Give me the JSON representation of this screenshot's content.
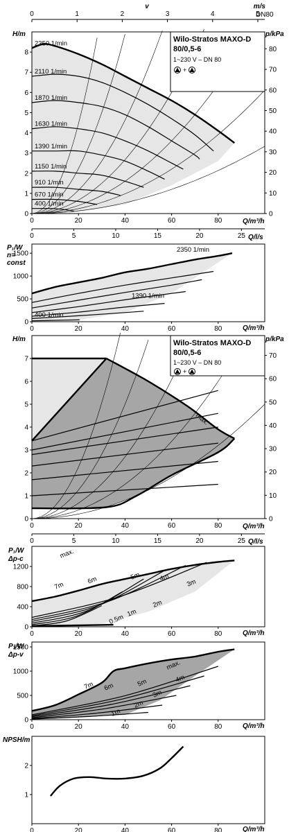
{
  "meta": {
    "product_title": "Wilo-Stratos MAXO-D",
    "product_model": "80/0,5-6",
    "product_subtitle": "1~230 V – DN 80",
    "product_title_3": "Wilo-Stratos MAXO-D",
    "product_model_3": "80/0,5-6",
    "product_subtitle_3": "1~230 V – DN 80"
  },
  "top_axis": {
    "velocity_symbol": "v",
    "velocity_unit": "m/s",
    "velocity_ticks": [
      "0",
      "1",
      "2",
      "3",
      "4",
      "5"
    ],
    "dn_label": "DN80"
  },
  "chart_data": [
    {
      "type": "line",
      "id": "hq",
      "ylabel": "H/m",
      "y2label": "p/kPa",
      "xlabel": "Q/m³/h",
      "x2label": "Q/l/s",
      "xlim": [
        0,
        100
      ],
      "ylim": [
        0,
        9
      ],
      "xticks": [
        "0",
        "20",
        "40",
        "60",
        "80"
      ],
      "yticks": [
        "0",
        "1",
        "2",
        "3",
        "4",
        "5",
        "6",
        "7",
        "8"
      ],
      "y2ticks": [
        "0",
        "10",
        "20",
        "30",
        "40",
        "50",
        "60",
        "70",
        "80"
      ],
      "x2ticks": [
        "0",
        "5",
        "10",
        "15",
        "20",
        "25"
      ],
      "series": [
        {
          "name": "2350 1/min",
          "x": [
            0,
            5,
            10,
            20,
            30,
            40,
            50,
            60,
            70,
            80,
            87
          ],
          "y": [
            8.2,
            8.4,
            8.3,
            7.9,
            7.4,
            6.8,
            6.2,
            5.6,
            4.9,
            4.1,
            3.5
          ]
        },
        {
          "name": "2110 1/min",
          "x": [
            0,
            10,
            20,
            30,
            40,
            50,
            60,
            70,
            78
          ],
          "y": [
            6.8,
            6.9,
            6.8,
            6.5,
            6.0,
            5.4,
            4.7,
            3.9,
            3.1
          ]
        },
        {
          "name": "1870 1/min",
          "x": [
            0,
            10,
            20,
            30,
            40,
            50,
            60,
            70,
            72
          ],
          "y": [
            5.5,
            5.6,
            5.5,
            5.3,
            4.9,
            4.3,
            3.6,
            2.9,
            2.7
          ]
        },
        {
          "name": "1630 1/min",
          "x": [
            0,
            10,
            20,
            30,
            40,
            50,
            60,
            65
          ],
          "y": [
            4.2,
            4.3,
            4.2,
            4.0,
            3.6,
            3.1,
            2.5,
            2.2
          ]
        },
        {
          "name": "1390 1/min",
          "x": [
            0,
            10,
            20,
            30,
            40,
            50,
            57
          ],
          "y": [
            3.1,
            3.1,
            3.1,
            2.9,
            2.6,
            2.1,
            1.7
          ]
        },
        {
          "name": "1150 1/min",
          "x": [
            0,
            10,
            20,
            30,
            40,
            48
          ],
          "y": [
            2.1,
            2.1,
            2.0,
            1.9,
            1.6,
            1.3
          ]
        },
        {
          "name": "910 1/min",
          "x": [
            0,
            10,
            20,
            30,
            38
          ],
          "y": [
            1.3,
            1.3,
            1.2,
            1.1,
            0.9
          ]
        },
        {
          "name": "670 1/min",
          "x": [
            0,
            10,
            20,
            28
          ],
          "y": [
            0.7,
            0.7,
            0.6,
            0.45
          ]
        },
        {
          "name": "400 1/min",
          "x": [
            0,
            8,
            14,
            18
          ],
          "y": [
            0.25,
            0.25,
            0.2,
            0.12
          ]
        }
      ]
    },
    {
      "type": "line",
      "id": "p1n",
      "ylabel": "P₁/W",
      "ylabel2": "n=",
      "ylabel3": "const",
      "xlabel": "Q/m³/h",
      "xlim": [
        0,
        100
      ],
      "ylim": [
        0,
        1700
      ],
      "xticks": [
        "0",
        "20",
        "40",
        "60",
        "80"
      ],
      "yticks": [
        "0",
        "500",
        "1000",
        "1500"
      ],
      "series": [
        {
          "name": "2350 1/min",
          "x": [
            0,
            10,
            20,
            30,
            40,
            50,
            60,
            70,
            80,
            86
          ],
          "y": [
            620,
            760,
            860,
            960,
            1080,
            1160,
            1260,
            1360,
            1440,
            1500
          ]
        },
        {
          "name": "",
          "x": [
            0,
            20,
            40,
            60,
            78
          ],
          "y": [
            420,
            620,
            800,
            960,
            1100
          ]
        },
        {
          "name": "",
          "x": [
            0,
            20,
            40,
            60,
            73
          ],
          "y": [
            300,
            470,
            640,
            800,
            920
          ]
        },
        {
          "name": "1390 1/min",
          "x": [
            0,
            20,
            40,
            60,
            66
          ],
          "y": [
            200,
            330,
            480,
            620,
            660
          ]
        },
        {
          "name": "",
          "x": [
            0,
            20,
            40,
            57
          ],
          "y": [
            120,
            210,
            320,
            400
          ]
        },
        {
          "name": "",
          "x": [
            0,
            20,
            40,
            48
          ],
          "y": [
            70,
            130,
            200,
            230
          ]
        },
        {
          "name": "400 1/min",
          "x": [
            0,
            10,
            20,
            18
          ],
          "y": [
            20,
            30,
            40,
            38
          ]
        }
      ]
    },
    {
      "type": "line",
      "id": "hq_range",
      "ylabel": "H/m",
      "y2label": "p/kPa",
      "xlabel": "Q/m³/h",
      "x2label": "Q/l/s",
      "xlim": [
        0,
        100
      ],
      "ylim": [
        0,
        8
      ],
      "xticks": [
        "0",
        "20",
        "40",
        "60",
        "80"
      ],
      "yticks": [
        "0",
        "1",
        "2",
        "3",
        "4",
        "5",
        "6",
        "7"
      ],
      "y2ticks": [
        "0",
        "10",
        "20",
        "30",
        "40",
        "50",
        "60",
        "70"
      ],
      "x2ticks": [
        "0",
        "5",
        "10",
        "15",
        "20",
        "25"
      ],
      "annotation": "max.",
      "series": []
    },
    {
      "type": "line",
      "id": "p1dpc",
      "ylabel": "P₁/W",
      "ylabel2": "Δp-c",
      "xlabel": "Q/m³/h",
      "xlim": [
        0,
        100
      ],
      "ylim": [
        0,
        1600
      ],
      "xticks": [
        "0",
        "20",
        "40",
        "60",
        "80"
      ],
      "yticks": [
        "0",
        "400",
        "800",
        "1200"
      ],
      "labels": [
        "max.",
        "7m",
        "6m",
        "5m",
        "4m",
        "3m",
        "2m",
        "1m",
        "0.5m"
      ],
      "series": []
    },
    {
      "type": "line",
      "id": "p1dpv",
      "ylabel": "P₁/W",
      "ylabel2": "Δp-v",
      "xlabel": "Q/m³/h",
      "xlim": [
        0,
        100
      ],
      "ylim": [
        0,
        1600
      ],
      "xticks": [
        "0",
        "20",
        "40",
        "60",
        "80"
      ],
      "yticks": [
        "0",
        "500",
        "1000",
        "1500"
      ],
      "labels": [
        "max.",
        "7m",
        "6m",
        "5m",
        "4m",
        "3m",
        "2m",
        "1m"
      ],
      "series": []
    },
    {
      "type": "line",
      "id": "npsh",
      "ylabel": "NPSH/m",
      "xlabel": "Q/m³/h",
      "xlim": [
        0,
        100
      ],
      "ylim": [
        0,
        3
      ],
      "xticks": [
        "0",
        "20",
        "40",
        "60",
        "80"
      ],
      "yticks": [
        "1",
        "2"
      ],
      "series": [
        {
          "name": "",
          "x": [
            8,
            12,
            18,
            25,
            32,
            40,
            48,
            55,
            60,
            65
          ],
          "y": [
            0.95,
            1.3,
            1.55,
            1.6,
            1.55,
            1.55,
            1.65,
            1.9,
            2.25,
            2.65
          ]
        }
      ]
    }
  ]
}
